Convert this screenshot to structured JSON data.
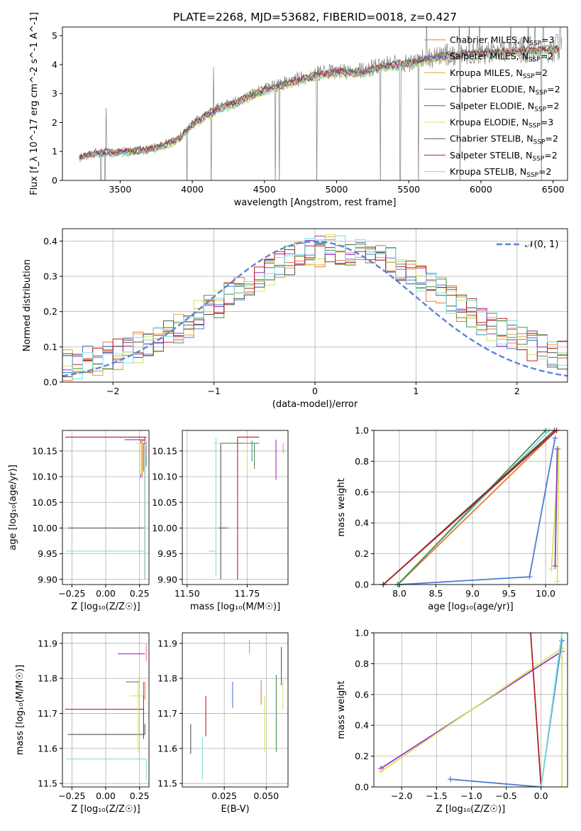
{
  "figure_title": "PLATE=2268, MJD=53682, FIBERID=0018, z=0.427",
  "colors": {
    "chabrier_miles": "#e87a2f",
    "salpeter_miles": "#4a7fd1",
    "kroupa_miles": "#e5a93a",
    "chabrier_elodie": "#4f8f4f",
    "salpeter_elodie": "#9b30c8",
    "kroupa_elodie": "#cde85f",
    "chabrier_stelib": "#555555",
    "salpeter_stelib": "#b22222",
    "kroupa_stelib": "#7ee0e0",
    "pink": "#f07ab0",
    "data_gray": "#808080",
    "normal_curve": "#5b86d6",
    "grid": "#b0b0b0"
  },
  "chart_data": [
    {
      "id": "spectrum",
      "type": "line",
      "xlabel": "wavelength [Angstrom, rest frame]",
      "ylabel": "Flux [f_λ 10^-17 erg cm^-2 s^-1 A^-1]",
      "xlim": [
        3100,
        6600
      ],
      "ylim": [
        0,
        5.3
      ],
      "xticks": [
        3500,
        4000,
        4500,
        5000,
        5500,
        6000,
        6500
      ],
      "yticks": [
        0,
        1,
        2,
        3,
        4,
        5
      ],
      "grid": false,
      "legend_position": "top-right",
      "legend": [
        {
          "label": "Chabrier MILES, N_SSP=3",
          "color_key": "chabrier_miles"
        },
        {
          "label": "Salpeter MILES, N_SSP=2",
          "color_key": "salpeter_miles"
        },
        {
          "label": "Kroupa MILES, N_SSP=2",
          "color_key": "kroupa_miles"
        },
        {
          "label": "Chabrier ELODIE, N_SSP=2",
          "color_key": "chabrier_elodie"
        },
        {
          "label": "Salpeter ELODIE, N_SSP=2",
          "color_key": "salpeter_elodie"
        },
        {
          "label": "Kroupa ELODIE, N_SSP=3",
          "color_key": "kroupa_elodie"
        },
        {
          "label": "Chabrier STELIB, N_SSP=2",
          "color_key": "chabrier_stelib"
        },
        {
          "label": "Salpeter STELIB, N_SSP=2",
          "color_key": "salpeter_stelib"
        },
        {
          "label": "Kroupa STELIB, N_SSP=2",
          "color_key": "kroupa_stelib"
        }
      ],
      "model_continuum": {
        "x": [
          3220,
          3300,
          3400,
          3500,
          3600,
          3700,
          3800,
          3900,
          4000,
          4100,
          4200,
          4300,
          4400,
          4500,
          4600,
          4700,
          4800,
          4900,
          5000,
          5100,
          5200,
          5300,
          5400,
          5500,
          5600,
          5700,
          5800,
          5900,
          6000,
          6100,
          6200,
          6300,
          6400,
          6500
        ],
        "y": [
          0.8,
          0.95,
          1.0,
          1.0,
          1.05,
          1.1,
          1.25,
          1.45,
          1.95,
          2.3,
          2.55,
          2.7,
          2.95,
          3.15,
          3.3,
          3.45,
          3.6,
          3.7,
          3.8,
          3.75,
          3.8,
          3.95,
          4.0,
          4.1,
          4.2,
          4.3,
          4.35,
          4.4,
          4.45,
          4.45,
          4.5,
          4.5,
          4.55,
          4.55
        ]
      }
    },
    {
      "id": "residuals",
      "type": "line",
      "xlabel": "(data-model)/error",
      "ylabel": "Normed distribution",
      "xlim": [
        -2.5,
        2.5
      ],
      "ylim": [
        0,
        0.435
      ],
      "xticks": [
        -2,
        -1,
        0,
        1,
        2
      ],
      "yticks": [
        0.0,
        0.1,
        0.2,
        0.3,
        0.4
      ],
      "grid": true,
      "legend_position": "top-right",
      "legend": [
        {
          "label": "𝒩(0, 1)",
          "color_key": "normal_curve",
          "style": "dashed"
        }
      ],
      "histogram_bin_width": 0.1
    },
    {
      "id": "age_vs_Z",
      "type": "scatter",
      "xlabel": "Z [log₁₀(Z/Z☉)]",
      "ylabel": "age  [log₁₀(age/yr)]",
      "xlim": [
        -0.32,
        0.32
      ],
      "ylim": [
        9.89,
        10.19
      ],
      "xticks": [
        -0.25,
        0.0,
        0.25
      ],
      "yticks": [
        9.9,
        9.95,
        10.0,
        10.05,
        10.1,
        10.15
      ],
      "grid": true
    },
    {
      "id": "age_vs_mass",
      "type": "scatter",
      "xlabel": "mass [log₁₀(M/M☉)]",
      "xlim": [
        11.48,
        11.92
      ],
      "ylim": [
        9.89,
        10.19
      ],
      "xticks": [
        11.5,
        11.75
      ],
      "yticks": [
        9.9,
        9.95,
        10.0,
        10.05,
        10.1,
        10.15
      ],
      "grid": true
    },
    {
      "id": "mass_weight_vs_age",
      "type": "line",
      "xlabel": "age  [log₁₀(age/yr)]",
      "ylabel": "mass weight",
      "xlim": [
        7.65,
        10.3
      ],
      "ylim": [
        0,
        1.0
      ],
      "xticks": [
        8.0,
        8.5,
        9.0,
        9.5,
        10.0
      ],
      "yticks": [
        0.0,
        0.2,
        0.4,
        0.6,
        0.8,
        1.0
      ],
      "grid": true,
      "series": [
        {
          "color_key": "salpeter_miles",
          "x": [
            8.0,
            9.78,
            10.13
          ],
          "y": [
            0.0,
            0.05,
            0.95
          ]
        },
        {
          "color_key": "kroupa_elodie",
          "x": [
            10.08,
            10.18,
            10.16
          ],
          "y": [
            0.1,
            0.88,
            0.02
          ]
        },
        {
          "color_key": "salpeter_elodie",
          "x": [
            10.13,
            10.16
          ],
          "y": [
            0.12,
            0.88
          ]
        },
        {
          "color_key": "chabrier_miles",
          "x": [
            7.98,
            10.15
          ],
          "y": [
            0.0,
            1.0
          ]
        },
        {
          "color_key": "kroupa_stelib",
          "x": [
            7.97,
            10.05
          ],
          "y": [
            0.0,
            1.0
          ]
        },
        {
          "color_key": "chabrier_elodie",
          "x": [
            7.98,
            10.0
          ],
          "y": [
            0.0,
            1.0
          ]
        },
        {
          "color_key": "chabrier_stelib",
          "x": [
            7.78,
            10.12
          ],
          "y": [
            0.0,
            1.0
          ]
        },
        {
          "color_key": "salpeter_stelib",
          "x": [
            7.78,
            10.15
          ],
          "y": [
            0.0,
            1.0
          ]
        }
      ]
    },
    {
      "id": "mass_vs_Z",
      "type": "scatter",
      "xlabel": "Z [log₁₀(Z/Z☉)]",
      "ylabel": "mass [log₁₀(M/M☉)]",
      "xlim": [
        -0.32,
        0.32
      ],
      "ylim": [
        11.49,
        11.93
      ],
      "xticks": [
        -0.25,
        0.0,
        0.25
      ],
      "yticks": [
        11.5,
        11.6,
        11.7,
        11.8,
        11.9
      ],
      "grid": true
    },
    {
      "id": "mass_vs_ebv",
      "type": "scatter",
      "xlabel": "E(B-V)",
      "xlim": [
        0.0,
        0.063
      ],
      "ylim": [
        11.49,
        11.93
      ],
      "xticks": [
        0.025,
        0.05
      ],
      "yticks": [
        11.5,
        11.6,
        11.7,
        11.8,
        11.9
      ],
      "grid": true
    },
    {
      "id": "mass_weight_vs_Z",
      "type": "line",
      "xlabel": "Z [log₁₀(Z/Z☉)]",
      "ylabel": "mass weight",
      "xlim": [
        -2.4,
        0.38
      ],
      "ylim": [
        0,
        1.0
      ],
      "xticks": [
        -2.0,
        -1.5,
        -1.0,
        -0.5,
        0.0
      ],
      "yticks": [
        0.0,
        0.2,
        0.4,
        0.6,
        0.8,
        1.0
      ],
      "grid": true,
      "series": [
        {
          "color_key": "salpeter_elodie",
          "x": [
            -2.3,
            0.3
          ],
          "y": [
            0.12,
            0.88
          ]
        },
        {
          "color_key": "kroupa_elodie",
          "x": [
            -2.3,
            0.3,
            0.3
          ],
          "y": [
            0.1,
            0.9,
            0.0
          ]
        },
        {
          "color_key": "salpeter_miles",
          "x": [
            -1.3,
            0.0,
            0.3
          ],
          "y": [
            0.05,
            0.0,
            0.95
          ]
        },
        {
          "color_key": "salpeter_stelib",
          "x": [
            -0.15,
            0.0
          ],
          "y": [
            1.0,
            0.0
          ]
        },
        {
          "color_key": "kroupa_stelib",
          "x": [
            0.0,
            0.3
          ],
          "y": [
            0.0,
            1.0
          ]
        }
      ]
    }
  ]
}
